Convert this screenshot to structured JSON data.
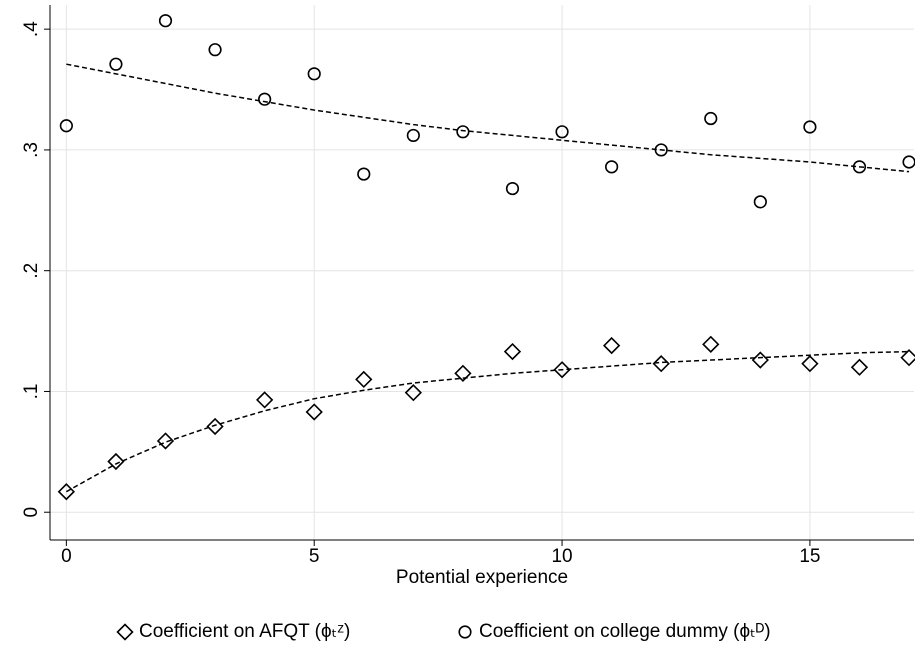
{
  "chart_data": {
    "type": "scatter",
    "x_label": "Potential experience",
    "x": [
      0,
      1,
      2,
      3,
      4,
      5,
      6,
      7,
      8,
      9,
      10,
      11,
      12,
      13,
      14,
      15,
      16,
      17
    ],
    "series": [
      {
        "name": "Coefficient on AFQT (ϕₜᶻ)",
        "marker": "diamond",
        "color": "#000000",
        "values": [
          0.017,
          0.042,
          0.059,
          0.071,
          0.093,
          0.083,
          0.11,
          0.099,
          0.115,
          0.133,
          0.118,
          0.138,
          0.123,
          0.139,
          0.126,
          0.123,
          0.12,
          0.128
        ]
      },
      {
        "name": "Coefficient on college dummy (ϕₜᴰ)",
        "marker": "circle",
        "color": "#000000",
        "values": [
          0.32,
          0.371,
          0.407,
          0.383,
          0.342,
          0.363,
          0.28,
          0.312,
          0.315,
          0.268,
          0.315,
          0.286,
          0.3,
          0.326,
          0.257,
          0.319,
          0.286,
          0.29
        ]
      }
    ],
    "fits": [
      {
        "color": "#000000",
        "dashed": true,
        "values": [
          0.017,
          0.04,
          0.058,
          0.072,
          0.084,
          0.094,
          0.101,
          0.107,
          0.111,
          0.115,
          0.118,
          0.121,
          0.124,
          0.126,
          0.128,
          0.13,
          0.132,
          0.133
        ]
      },
      {
        "color": "#000000",
        "dashed": true,
        "values": [
          0.371,
          0.363,
          0.355,
          0.347,
          0.34,
          0.333,
          0.327,
          0.321,
          0.316,
          0.312,
          0.308,
          0.304,
          0.3,
          0.296,
          0.293,
          0.29,
          0.286,
          0.282
        ]
      }
    ],
    "xlim": [
      -0.33,
      17.1
    ],
    "ylim": [
      -0.023,
      0.42
    ],
    "xticks": [
      0,
      5,
      10,
      15
    ],
    "yticks": [
      0,
      {
        "value": 0.1,
        "label": ".1"
      },
      {
        "value": 0.2,
        "label": ".2"
      },
      {
        "value": 0.3,
        "label": ".3"
      },
      {
        "value": 0.4,
        "label": ".4"
      }
    ],
    "grid": true
  }
}
